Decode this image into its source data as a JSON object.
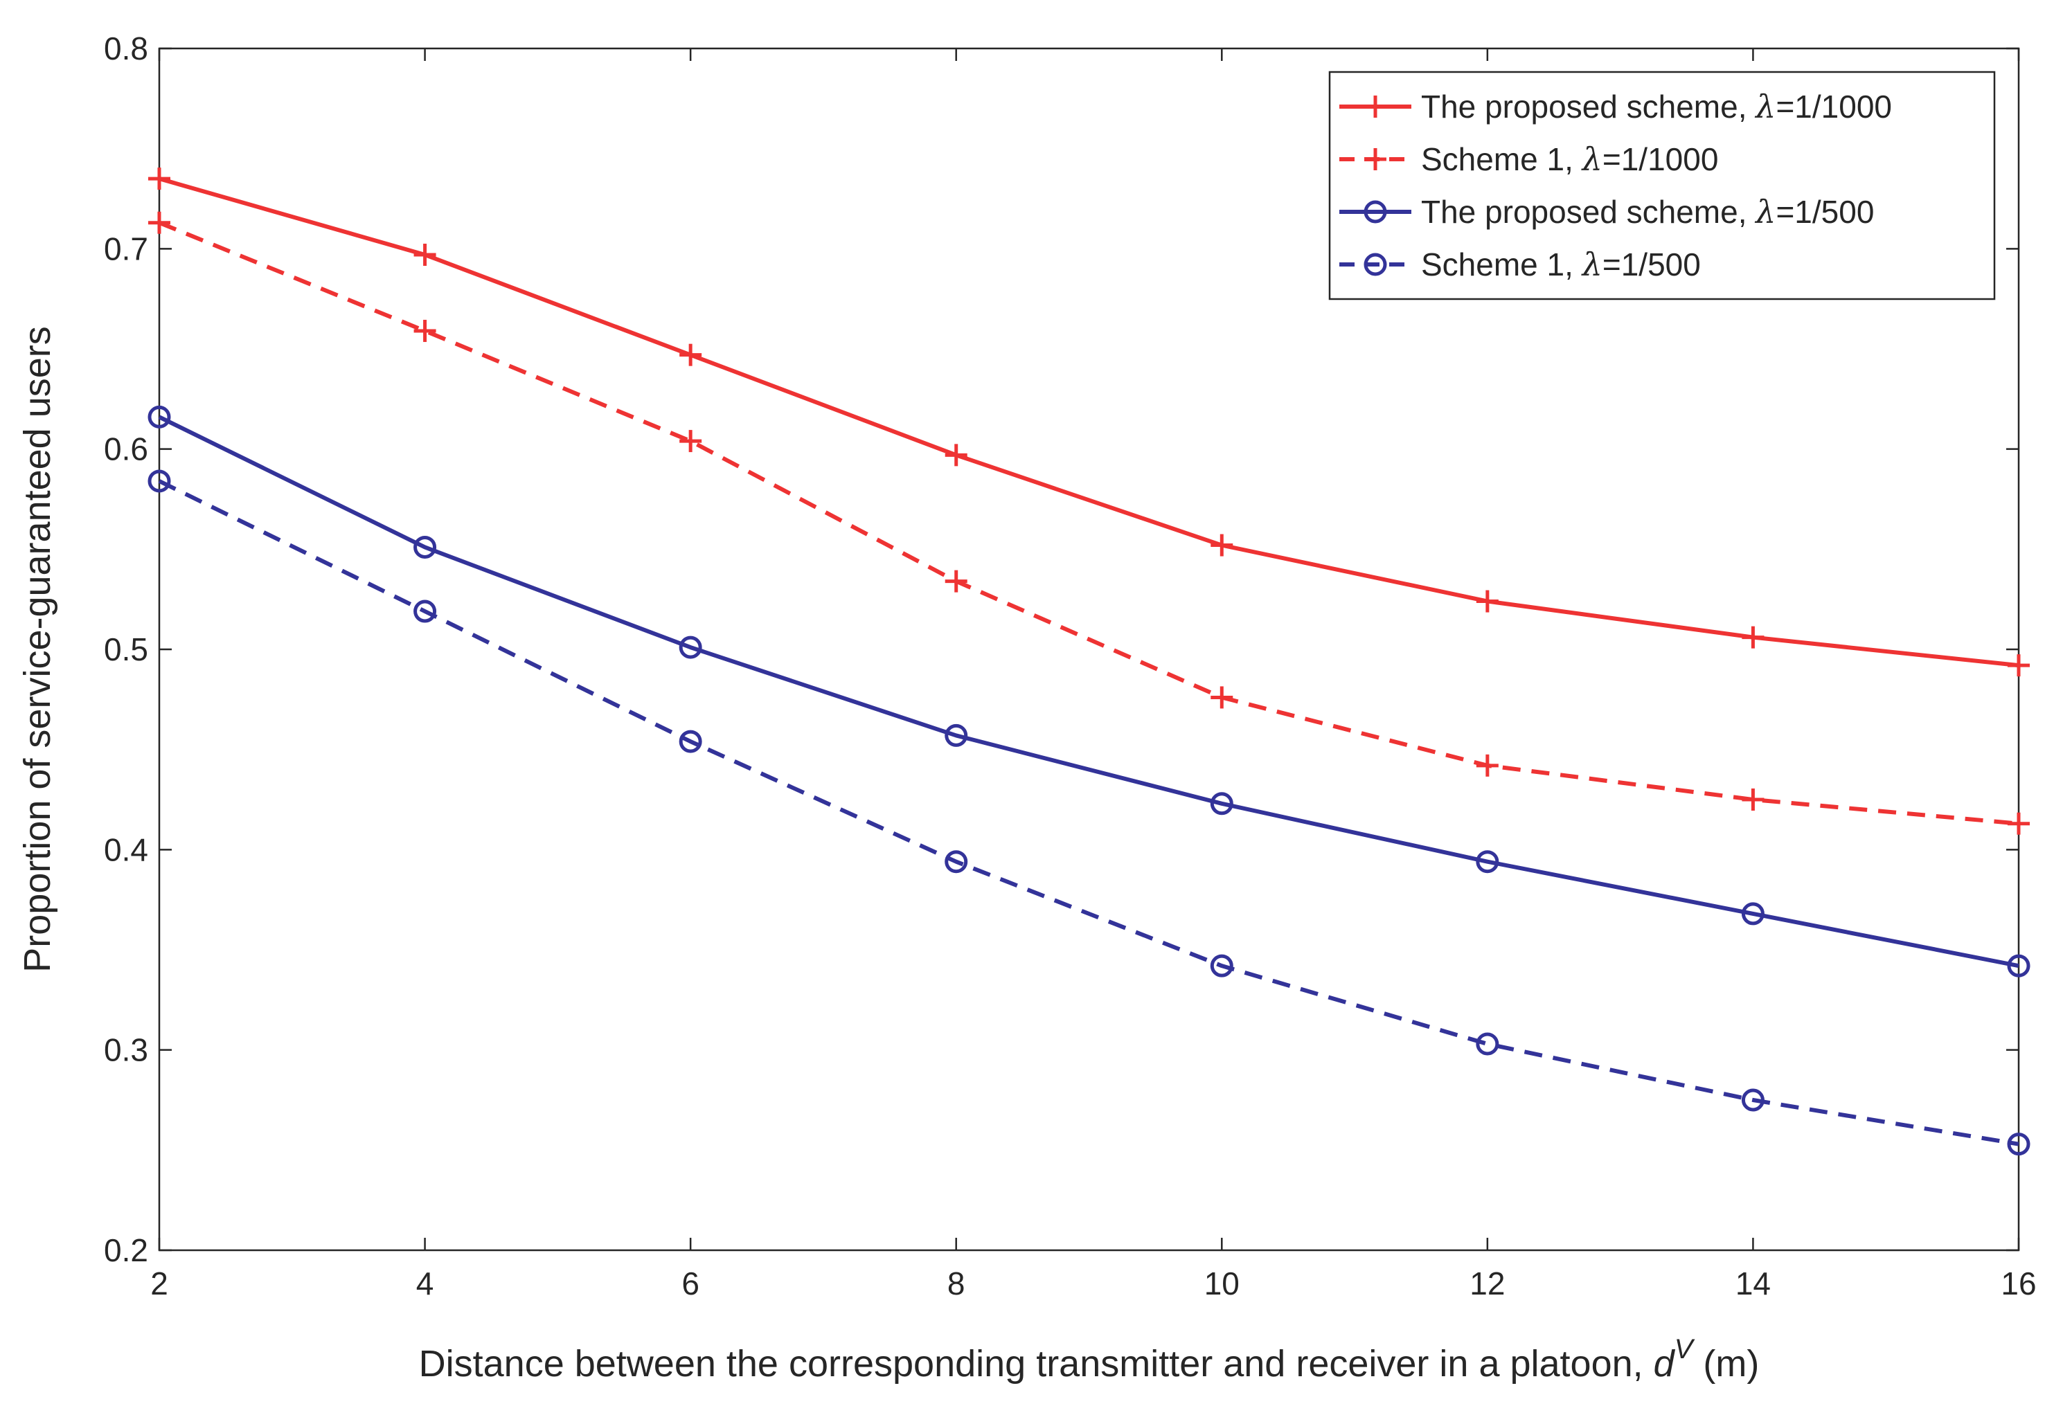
{
  "chart_data": {
    "type": "line",
    "title": "",
    "xlabel": "Distance between the corresponding transmitter and receiver in a platoon, ",
    "xlabel_symbol": "d",
    "xlabel_superscript": "V",
    "xlabel_unit": " (m)",
    "ylabel": "Proportion of service-guaranteed users",
    "xlim": [
      2,
      16
    ],
    "ylim": [
      0.2,
      0.8
    ],
    "xticks": [
      2,
      4,
      6,
      8,
      10,
      12,
      14,
      16
    ],
    "yticks": [
      0.2,
      0.3,
      0.4,
      0.5,
      0.6,
      0.7,
      0.8
    ],
    "xtick_labels": [
      "2",
      "4",
      "6",
      "8",
      "10",
      "12",
      "14",
      "16"
    ],
    "ytick_labels": [
      "0.2",
      "0.3",
      "0.4",
      "0.5",
      "0.6",
      "0.7",
      "0.8"
    ],
    "grid": false,
    "legend_position": "top-right",
    "x": [
      2,
      4,
      6,
      8,
      10,
      12,
      14,
      16
    ],
    "series": [
      {
        "name_prefix": "The proposed scheme, ",
        "name_symbol": "λ",
        "name_suffix": "=1/1000",
        "color": "#ee3333",
        "dash": "solid",
        "marker": "plus",
        "values": [
          0.735,
          0.697,
          0.647,
          0.597,
          0.552,
          0.524,
          0.506,
          0.492
        ]
      },
      {
        "name_prefix": "Scheme 1, ",
        "name_symbol": "λ",
        "name_suffix": "=1/1000",
        "color": "#ee3333",
        "dash": "dashed",
        "marker": "plus",
        "values": [
          0.713,
          0.659,
          0.604,
          0.534,
          0.476,
          0.442,
          0.425,
          0.413
        ]
      },
      {
        "name_prefix": "The proposed scheme, ",
        "name_symbol": "λ",
        "name_suffix": "=1/500",
        "color": "#333399",
        "dash": "solid",
        "marker": "circle",
        "values": [
          0.616,
          0.551,
          0.501,
          0.457,
          0.423,
          0.394,
          0.368,
          0.342
        ]
      },
      {
        "name_prefix": "Scheme 1, ",
        "name_symbol": "λ",
        "name_suffix": "=1/500",
        "color": "#333399",
        "dash": "dashed",
        "marker": "circle",
        "values": [
          0.584,
          0.519,
          0.454,
          0.394,
          0.342,
          0.303,
          0.275,
          0.253
        ]
      }
    ]
  }
}
